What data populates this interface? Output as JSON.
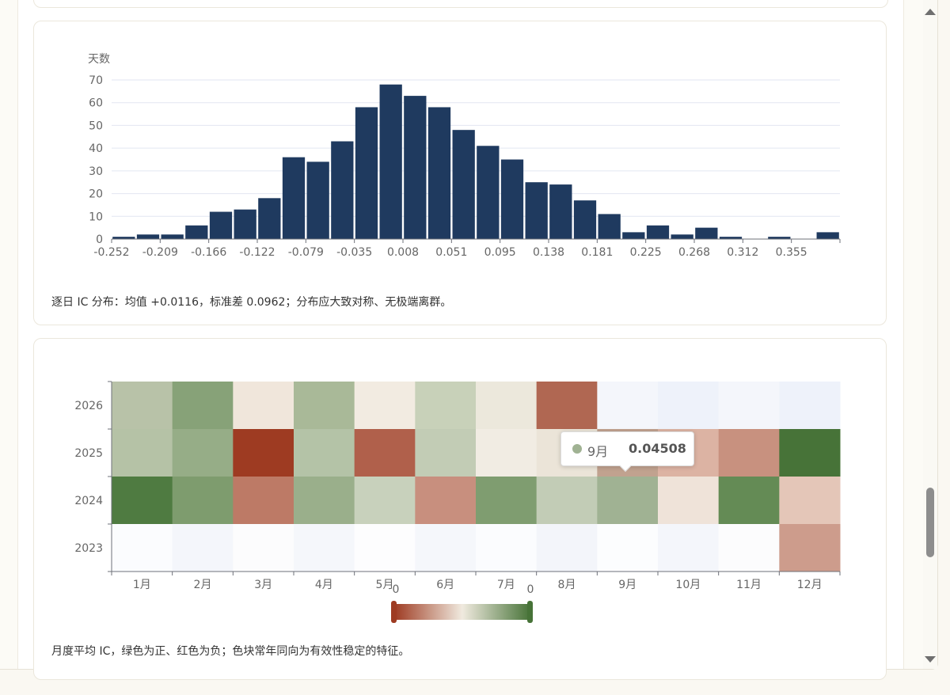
{
  "chart_data": [
    {
      "type": "bar",
      "ylabel": "天数",
      "ylim": [
        0,
        70
      ],
      "yticks": [
        0,
        10,
        20,
        30,
        40,
        50,
        60,
        70
      ],
      "xticks": [
        "-0.252",
        "-0.209",
        "-0.166",
        "-0.122",
        "-0.079",
        "-0.035",
        "0.008",
        "0.051",
        "0.095",
        "0.138",
        "0.181",
        "0.225",
        "0.268",
        "0.312",
        "0.355"
      ],
      "values": [
        1,
        2,
        2,
        6,
        12,
        13,
        18,
        36,
        34,
        43,
        58,
        68,
        63,
        58,
        48,
        41,
        35,
        25,
        24,
        17,
        11,
        3,
        6,
        2,
        5,
        1,
        0,
        1,
        0,
        3
      ],
      "grid": true,
      "color": "#1f3a5f"
    },
    {
      "type": "heatmap",
      "categories": [
        "1月",
        "2月",
        "3月",
        "4月",
        "5月",
        "6月",
        "7月",
        "8月",
        "9月",
        "10月",
        "11月",
        "12月"
      ],
      "years": [
        "2026",
        "2025",
        "2024",
        "2023"
      ],
      "cells": [
        [
          "#b8c2a8",
          "#87a278",
          "#f0e6db",
          "#a9b998",
          "#f2ebe1",
          "#c8d1b9",
          "#ece8dc",
          "#b06752",
          "#f4f6fb",
          "#eef2fa",
          "#f4f6fb",
          "#eef2fa"
        ],
        [
          "#b5c2a6",
          "#96ad87",
          "#9e3b22",
          "#b4c3a7",
          "#b0604b",
          "#c2ccb5",
          "#f1ece3",
          "#ebe4d8",
          "#c1a28f",
          "#dcb3a3",
          "#c8917f",
          "#477338"
        ],
        [
          "#4f7b41",
          "#7e9c6e",
          "#bd7a66",
          "#9aaf8b",
          "#c8d1bc",
          "#c88f7e",
          "#7f9d70",
          "#c2ccb6",
          "#a0b293",
          "#efe3d9",
          "#648b55",
          "#e4c6b8"
        ],
        [
          "#fbfcfe",
          "#f4f6fb",
          "#fcfcfd",
          "#f5f7fb",
          "#fdfdfe",
          "#f5f7fb",
          "#fbfcfe",
          "#f3f5fa",
          "#fcfdfe",
          "#f4f6fb",
          "#fcfcfd",
          "#cd9c8c"
        ]
      ],
      "visualmap": {
        "min_label": "0",
        "max_label": "0",
        "colors": [
          "#9e3b22",
          "#f0eadf",
          "#477338"
        ]
      },
      "tooltip": {
        "label": "9月",
        "value": "0.04508",
        "dot_color": "#a0b293"
      }
    }
  ],
  "captions": {
    "hist": "逐日 IC 分布：均值 +0.0116，标准差 0.0962；分布应大致对称、无极端离群。",
    "heat": "月度平均 IC，绿色为正、红色为负；色块常年同向为有效性稳定的特征。"
  }
}
